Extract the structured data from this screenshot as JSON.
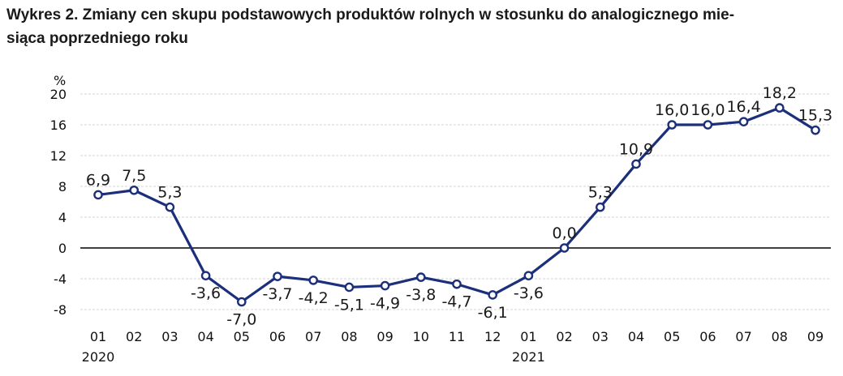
{
  "chart_data": {
    "type": "line",
    "title": "Wykres 2. Zmiany cen skupu podstawowych produktów rolnych w stosunku do analogicznego mie-siąca poprzedniego roku",
    "title_line1": "Wykres 2. Zmiany cen skupu podstawowych produktów rolnych w stosunku do analogicznego mie-",
    "title_line2": "siąca poprzedniego roku",
    "ylabel": "%",
    "xlabel": "",
    "ylim": [
      -8,
      20
    ],
    "yticks": [
      -8,
      -4,
      0,
      4,
      8,
      12,
      16,
      20
    ],
    "ytick_labels": [
      "-8",
      "-4",
      "0",
      "4",
      "8",
      "12",
      "16",
      "20"
    ],
    "grid": true,
    "categories": [
      "01",
      "02",
      "03",
      "04",
      "05",
      "06",
      "07",
      "08",
      "09",
      "10",
      "11",
      "12",
      "01",
      "02",
      "03",
      "04",
      "05",
      "06",
      "07",
      "08",
      "09"
    ],
    "year_labels": [
      {
        "index": 0,
        "label": "2020"
      },
      {
        "index": 12,
        "label": "2021"
      }
    ],
    "series": [
      {
        "name": "Zmiany cen skupu",
        "color": "#1b2f7a",
        "values": [
          6.9,
          7.5,
          5.3,
          -3.6,
          -7.0,
          -3.7,
          -4.2,
          -5.1,
          -4.9,
          -3.8,
          -4.7,
          -6.1,
          -3.6,
          0.0,
          5.3,
          10.9,
          16.0,
          16.0,
          16.4,
          18.2,
          15.3
        ],
        "labels": [
          "6,9",
          "7,5",
          "5,3",
          "-3,6",
          "-7,0",
          "-3,7",
          "-4,2",
          "-5,1",
          "-4,9",
          "-3,8",
          "-4,7",
          "-6,1",
          "-3,6",
          "0,0",
          "5,3",
          "10,9",
          "16,0",
          "16,0",
          "16,4",
          "18,2",
          "15,3"
        ],
        "label_positions": [
          "above",
          "above",
          "above",
          "below",
          "below",
          "below",
          "below",
          "below",
          "below",
          "below",
          "below",
          "below",
          "below",
          "above",
          "above",
          "above",
          "above",
          "above",
          "above",
          "above",
          "above"
        ]
      }
    ]
  },
  "colors": {
    "line": "#1b2f7a",
    "grid": "#d3d3d3",
    "zero_line": "#000000",
    "marker_fill": "#ffffff"
  }
}
